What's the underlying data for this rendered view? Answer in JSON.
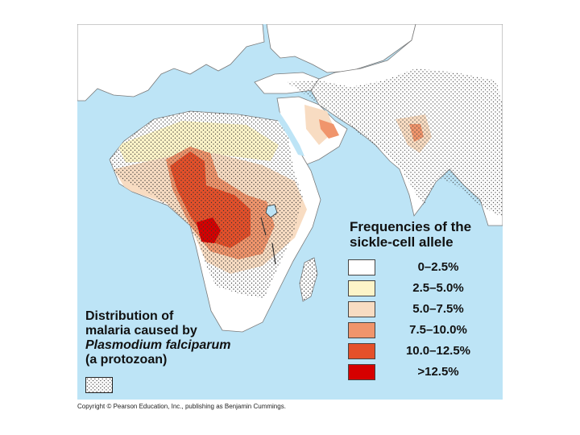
{
  "legend": {
    "title_line1": "Frequencies of the",
    "title_line2": "sickle-cell allele",
    "items": [
      {
        "label": "0–2.5%",
        "color": "#ffffff"
      },
      {
        "label": "2.5–5.0%",
        "color": "#fdf4c8"
      },
      {
        "label": "5.0–7.5%",
        "color": "#f8dcc2"
      },
      {
        "label": "7.5–10.0%",
        "color": "#f0956c"
      },
      {
        "label": "10.0–12.5%",
        "color": "#e4502a"
      },
      {
        "label": ">12.5%",
        "color": "#d60000"
      }
    ]
  },
  "distribution": {
    "line1": "Distribution of",
    "line2": "malaria caused by",
    "line3": "Plasmodium falciparum",
    "line4": "(a protozoan)"
  },
  "copyright": "Copyright © Pearson Education, Inc., publishing as Benjamin Cummings.",
  "colors": {
    "sea": "#bde4f6",
    "land": "#ffffff",
    "outline": "#7a7a7a"
  }
}
